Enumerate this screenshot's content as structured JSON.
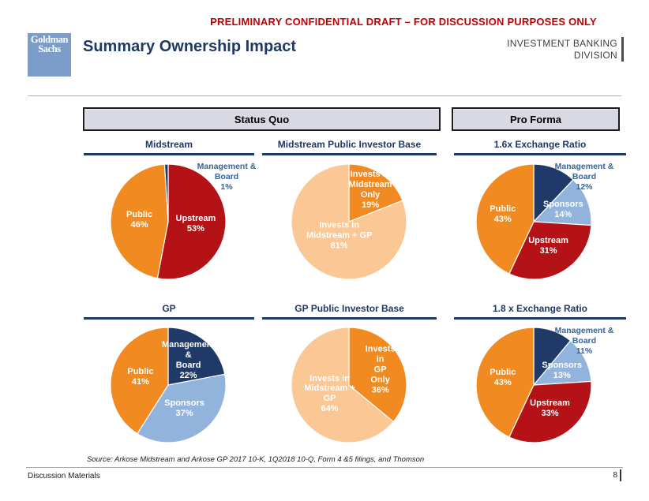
{
  "header": {
    "disclaimer": "PRELIMINARY CONFIDENTIAL DRAFT – FOR DISCUSSION PURPOSES ONLY",
    "logo": {
      "line1": "Goldman",
      "line2": "Sachs"
    },
    "title": "Summary Ownership Impact",
    "division": {
      "line1": "INVESTMENT BANKING",
      "line2": "DIVISION"
    }
  },
  "groups": {
    "status_quo": "Status Quo",
    "pro_forma": "Pro Forma"
  },
  "colors": {
    "orange": "#F08A21",
    "red": "#B41216",
    "navy": "#1F3A68",
    "lightblue": "#92B4DC",
    "peach": "#FAC795",
    "title_navy": "#1F3864",
    "disclaimer_red": "#C00000",
    "logo_blue": "#7C9DC9",
    "outside_label_blue": "#35639E",
    "header_box_fill": "#D9D9E3"
  },
  "chart_data": [
    {
      "type": "pie",
      "title": "Midstream",
      "group": "Status Quo",
      "start_angle_deg": 0,
      "direction": "clockwise",
      "slices": [
        {
          "label": "Upstream",
          "value": 53,
          "color": "red",
          "label_pos": "inside",
          "lines": [
            "Upstream",
            "53%"
          ],
          "lr": 0.48
        },
        {
          "label": "Public",
          "value": 46,
          "color": "orange",
          "label_pos": "inside",
          "lines": [
            "Public",
            "46%"
          ],
          "lr": 0.5
        },
        {
          "label": "Management & Board",
          "value": 1,
          "color": "navy",
          "label_pos": "outside",
          "lines": [
            "Management &",
            "Board",
            "1%"
          ]
        }
      ]
    },
    {
      "type": "pie",
      "title": "Midstream Public Investor Base",
      "group": "Status Quo",
      "start_angle_deg": 0,
      "direction": "clockwise",
      "slices": [
        {
          "label": "Invests in Midstream Only",
          "value": 19,
          "color": "orange",
          "label_pos": "inside",
          "lines": [
            "Invests in",
            "Midstream",
            "Only",
            "19%"
          ],
          "lr": 0.66
        },
        {
          "label": "Invests in Midstream + GP",
          "value": 81,
          "color": "peach",
          "label_pos": "inside",
          "lines": [
            "Invests in",
            "Midstream + GP",
            "81%"
          ],
          "lr": 0.3
        }
      ]
    },
    {
      "type": "pie",
      "title": "1.6x Exchange Ratio",
      "group": "Pro Forma",
      "start_angle_deg": 0,
      "direction": "clockwise",
      "slices": [
        {
          "label": "Management & Board",
          "value": 12,
          "color": "navy",
          "label_pos": "outside",
          "lines": [
            "Management &",
            "Board",
            "12%"
          ]
        },
        {
          "label": "Sponsors",
          "value": 14,
          "color": "lightblue",
          "label_pos": "inside",
          "lines": [
            "Sponsors",
            "14%"
          ],
          "lr": 0.55
        },
        {
          "label": "Upstream",
          "value": 31,
          "color": "red",
          "label_pos": "inside",
          "lines": [
            "Upstream",
            "31%"
          ],
          "lr": 0.5
        },
        {
          "label": "Public",
          "value": 43,
          "color": "orange",
          "label_pos": "inside",
          "lines": [
            "Public",
            "43%"
          ],
          "lr": 0.55
        }
      ]
    },
    {
      "type": "pie",
      "title": "GP",
      "group": "Status Quo",
      "start_angle_deg": 0,
      "direction": "clockwise",
      "slices": [
        {
          "label": "Management & Board",
          "value": 22,
          "color": "navy",
          "label_pos": "inside",
          "lines": [
            "Management &",
            "Board",
            "22%"
          ],
          "lr": 0.55
        },
        {
          "label": "Sponsors",
          "value": 37,
          "color": "lightblue",
          "label_pos": "inside",
          "lines": [
            "Sponsors",
            "37%"
          ],
          "lr": 0.5
        },
        {
          "label": "Public",
          "value": 41,
          "color": "orange",
          "label_pos": "inside",
          "lines": [
            "Public",
            "41%"
          ],
          "lr": 0.5
        }
      ]
    },
    {
      "type": "pie",
      "title": "GP Public Investor Base",
      "group": "Status Quo",
      "start_angle_deg": 0,
      "direction": "clockwise",
      "slices": [
        {
          "label": "Invests in GP Only",
          "value": 36,
          "color": "orange",
          "label_pos": "inside",
          "lines": [
            "Invests in",
            "GP Only",
            "36%"
          ],
          "lr": 0.6
        },
        {
          "label": "Invests in Midstream + GP",
          "value": 64,
          "color": "peach",
          "label_pos": "inside",
          "lines": [
            "Invests in",
            "Midstream +",
            "GP",
            "64%"
          ],
          "lr": 0.37
        }
      ]
    },
    {
      "type": "pie",
      "title": "1.8 x Exchange Ratio",
      "group": "Pro Forma",
      "start_angle_deg": 0,
      "direction": "clockwise",
      "slices": [
        {
          "label": "Management & Board",
          "value": 11,
          "color": "navy",
          "label_pos": "outside",
          "lines": [
            "Management &",
            "Board",
            "11%"
          ]
        },
        {
          "label": "Sponsors",
          "value": 13,
          "color": "lightblue",
          "label_pos": "inside",
          "lines": [
            "Sponsors",
            "13%"
          ],
          "lr": 0.55
        },
        {
          "label": "Upstream",
          "value": 33,
          "color": "red",
          "label_pos": "inside",
          "lines": [
            "Upstream",
            "33%"
          ],
          "lr": 0.5
        },
        {
          "label": "Public",
          "value": 43,
          "color": "orange",
          "label_pos": "inside",
          "lines": [
            "Public",
            "43%"
          ],
          "lr": 0.55
        }
      ]
    }
  ],
  "footnote": "Source: Arkose Midstream and Arkose GP 2017 10-K, 1Q2018 10-Q, Form 4 &5 filings, and Thomson",
  "footer": {
    "left": "Discussion Materials",
    "page": "8"
  }
}
